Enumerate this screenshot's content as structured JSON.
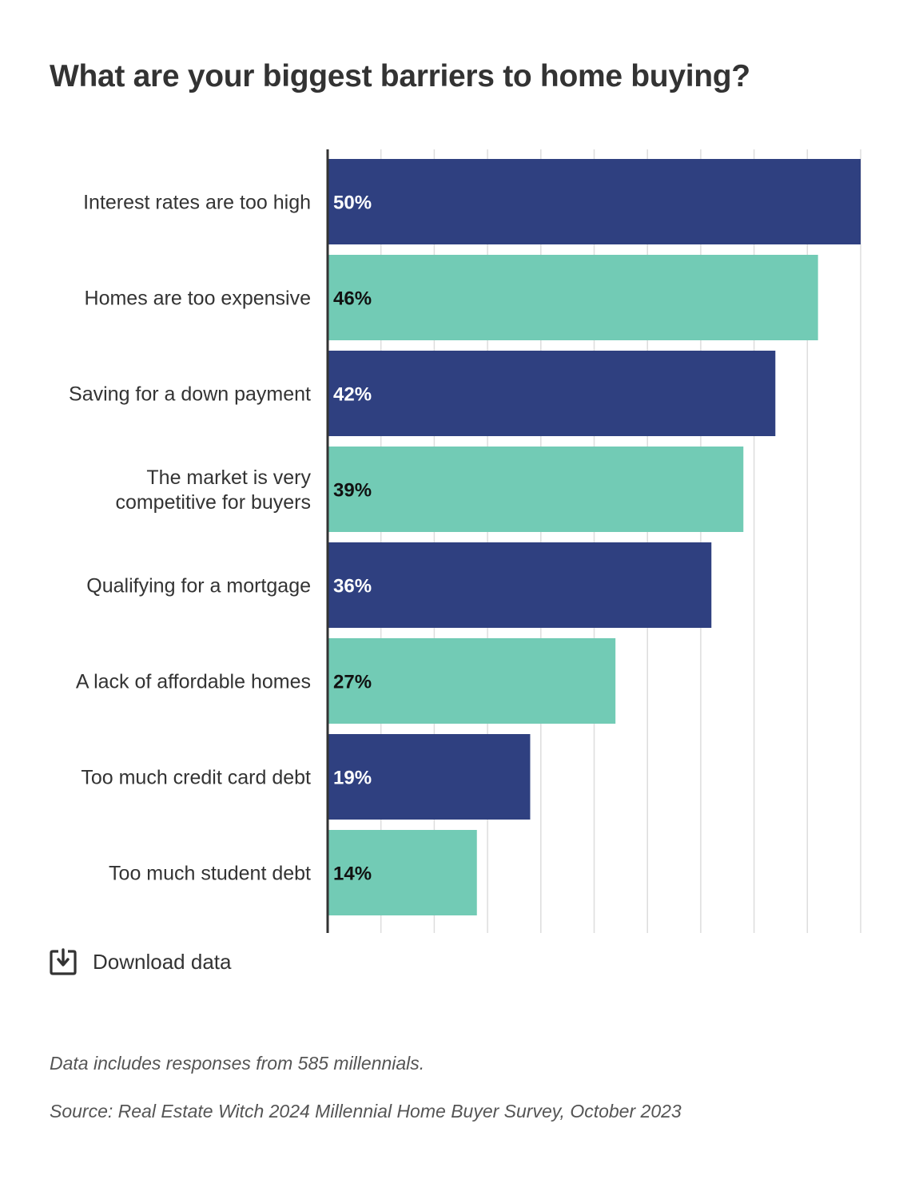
{
  "title": "What are your biggest barriers to home buying?",
  "download": {
    "label": "Download data",
    "icon": "download-icon"
  },
  "notes": {
    "responses": "Data includes responses from 585 millennials.",
    "source": "Source: Real Estate Witch 2024 Millennial Home Buyer Survey, October 2023"
  },
  "colors": {
    "navy": "#2f4080",
    "teal": "#72cbb5",
    "grid": "#dddddd",
    "axis": "#333333"
  },
  "chart_data": {
    "type": "bar",
    "orientation": "horizontal",
    "title": "What are your biggest barriers to home buying?",
    "xlabel": "",
    "ylabel": "",
    "xlim": [
      0,
      50
    ],
    "grid": true,
    "categories": [
      [
        "Interest rates are too high"
      ],
      [
        "Homes are too expensive"
      ],
      [
        "Saving for a down payment"
      ],
      [
        "The market is very",
        "competitive for buyers"
      ],
      [
        "Qualifying for a mortgage"
      ],
      [
        "A lack of affordable homes"
      ],
      [
        "Too much credit card debt"
      ],
      [
        "Too much student debt"
      ]
    ],
    "values": [
      50,
      46,
      42,
      39,
      36,
      27,
      19,
      14
    ],
    "value_labels": [
      "50%",
      "46%",
      "42%",
      "39%",
      "36%",
      "27%",
      "19%",
      "14%"
    ],
    "bar_colors": [
      "#2f4080",
      "#72cbb5",
      "#2f4080",
      "#72cbb5",
      "#2f4080",
      "#72cbb5",
      "#2f4080",
      "#72cbb5"
    ],
    "label_colors": [
      "#ffffff",
      "#111111",
      "#ffffff",
      "#111111",
      "#ffffff",
      "#111111",
      "#ffffff",
      "#111111"
    ]
  }
}
